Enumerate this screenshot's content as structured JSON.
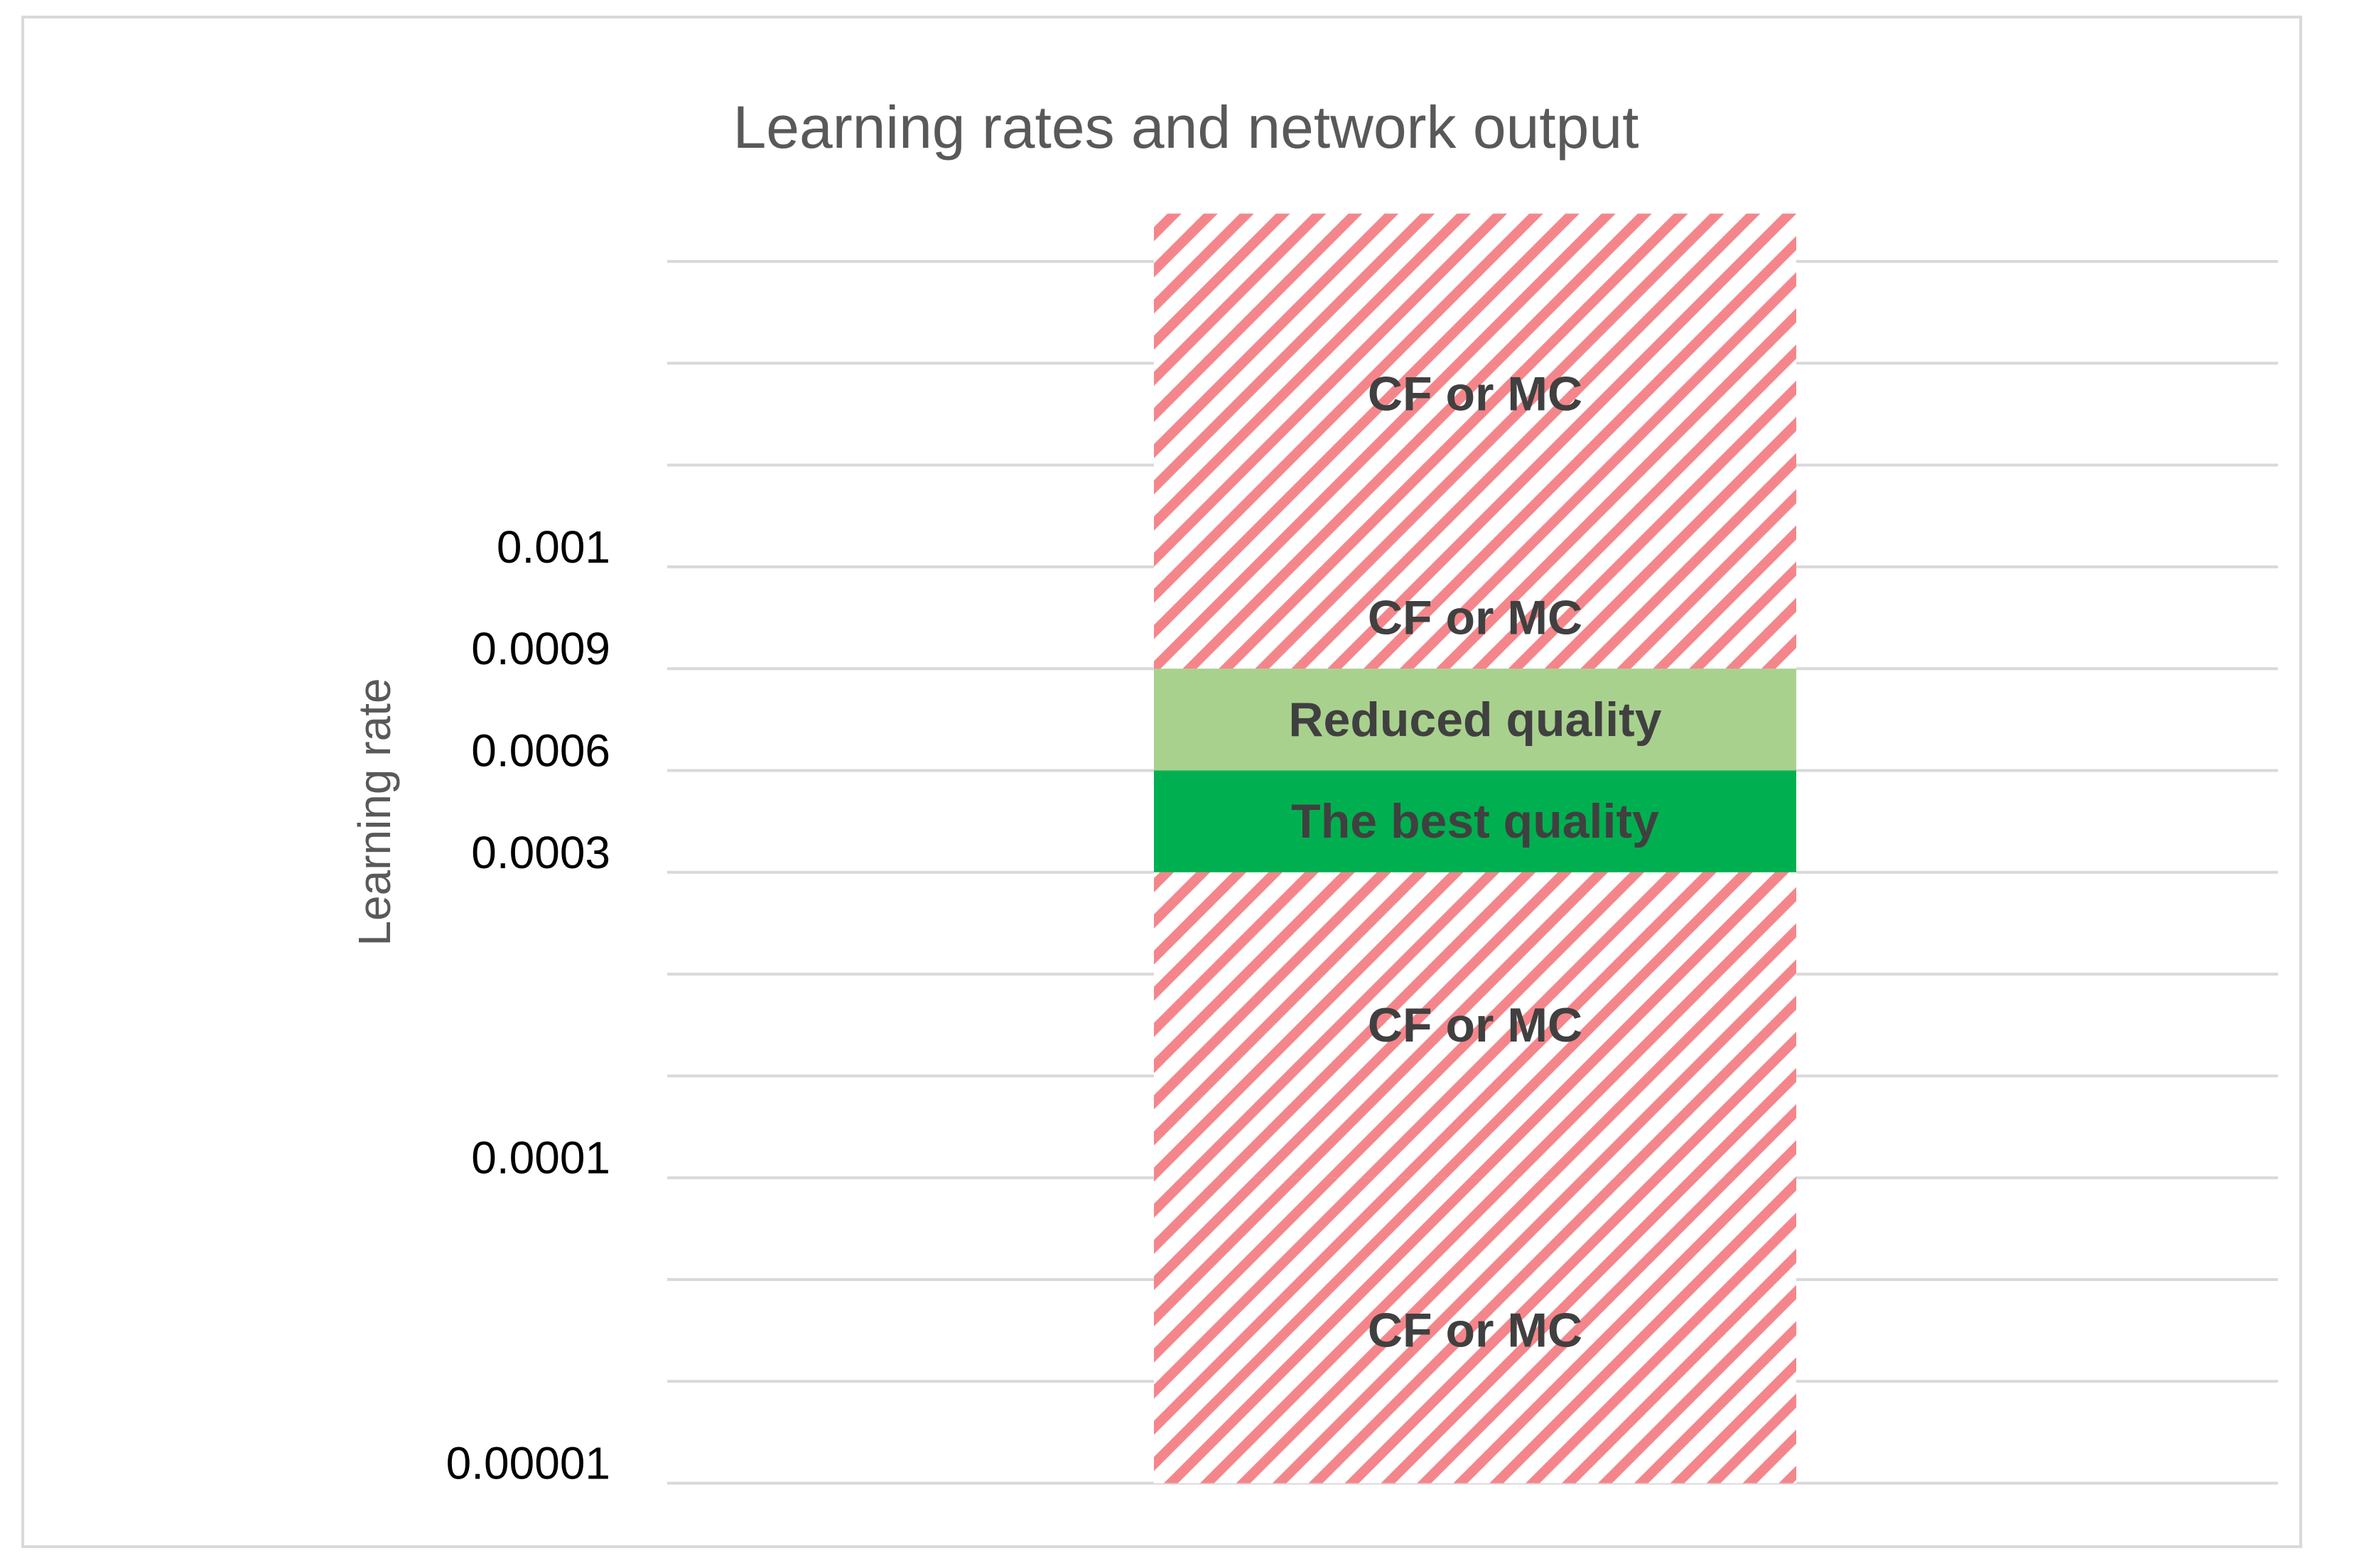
{
  "chart_data": {
    "type": "bar",
    "title": "Learning rates and network output",
    "ylabel": "Learning rate",
    "xlabel": "",
    "grid": true,
    "legend": "none",
    "y_tick_labels": [
      "0.001",
      "0.0009",
      "0.0006",
      "0.0003",
      "0.0001",
      "0.00001"
    ],
    "bands": [
      {
        "label": "CF or MC",
        "from": "0.001",
        "to": "",
        "style": "hatched",
        "color": "#f4868b"
      },
      {
        "label": "CF or MC",
        "from": "0.0009",
        "to": "0.001",
        "style": "hatched",
        "color": "#f4868b"
      },
      {
        "label": "Reduced quality",
        "from": "0.0006",
        "to": "0.0009",
        "style": "solid",
        "color": "#a9d18e"
      },
      {
        "label": "The best quality",
        "from": "0.0003",
        "to": "0.0006",
        "style": "solid",
        "color": "#00b050"
      },
      {
        "label": "CF or MC",
        "from": "0.0001",
        "to": "0.0003",
        "style": "hatched",
        "color": "#f4868b"
      },
      {
        "label": "CF or MC",
        "from": "0.00001",
        "to": "0.0001",
        "style": "hatched",
        "color": "#f4868b"
      }
    ]
  }
}
